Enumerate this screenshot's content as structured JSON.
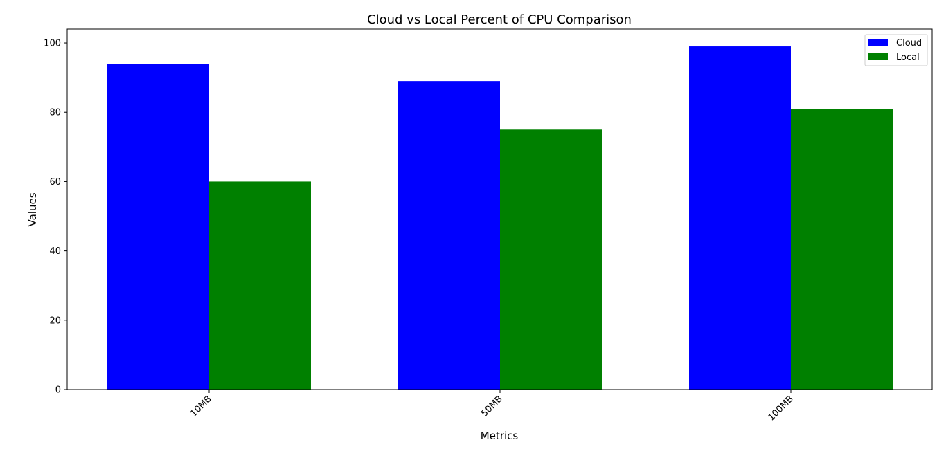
{
  "chart_data": {
    "type": "bar",
    "title": "Cloud vs Local Percent of CPU Comparison",
    "xlabel": "Metrics",
    "ylabel": "Values",
    "categories": [
      "10MB",
      "50MB",
      "100MB"
    ],
    "series": [
      {
        "name": "Cloud",
        "color": "#0000ff",
        "values": [
          94,
          89,
          99
        ]
      },
      {
        "name": "Local",
        "color": "#008000",
        "values": [
          60,
          75,
          81
        ]
      }
    ],
    "ylim": [
      0,
      104
    ],
    "yticks": [
      0,
      20,
      40,
      60,
      80,
      100
    ],
    "grid": false,
    "legend_position": "top-right"
  }
}
